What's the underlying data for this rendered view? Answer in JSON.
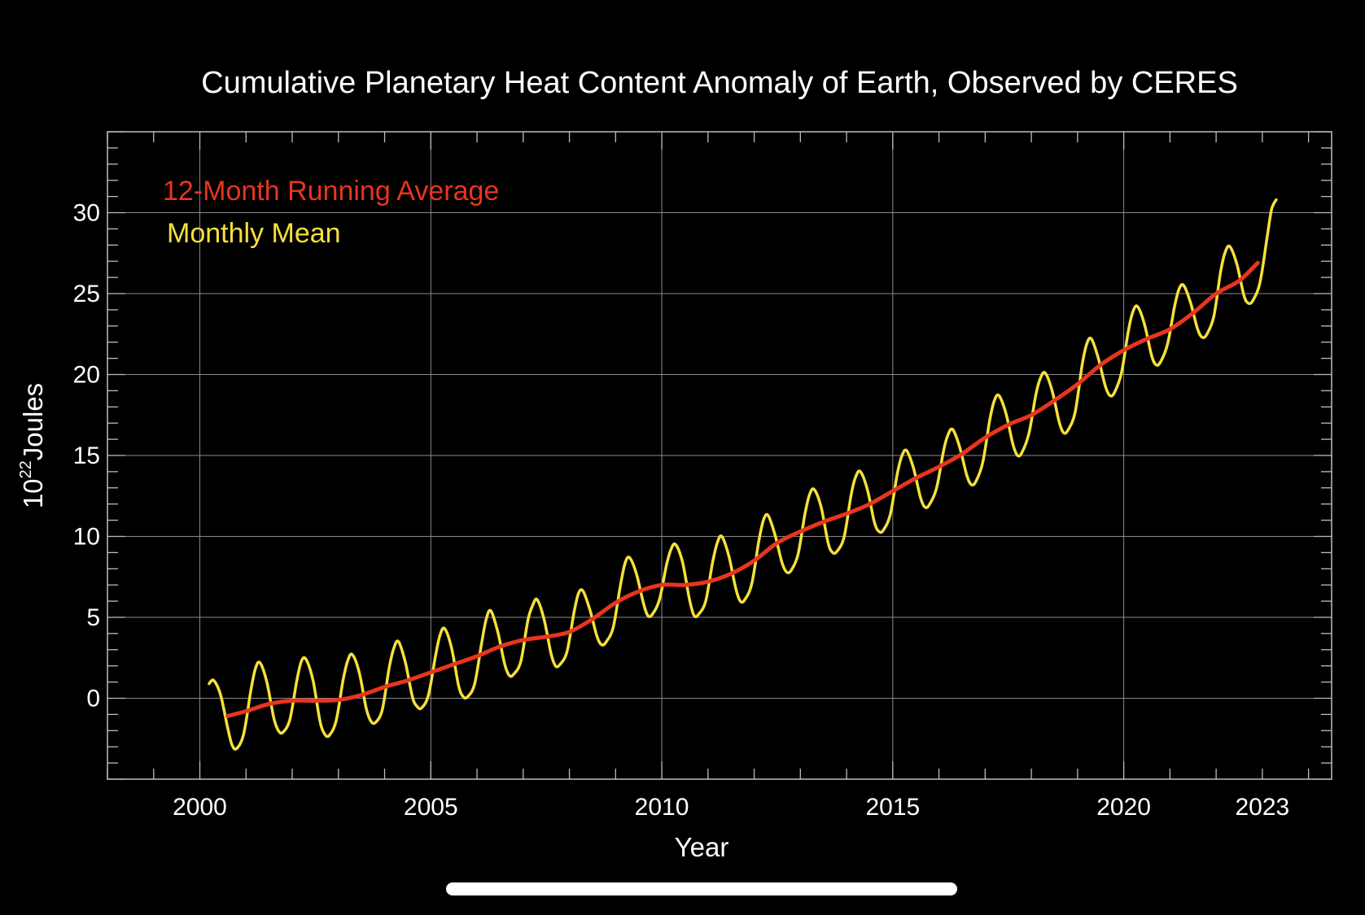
{
  "chart_data": {
    "type": "line",
    "title": "Cumulative Planetary Heat Content Anomaly of Earth, Observed by CERES",
    "xlabel": "Year",
    "ylabel": "Joules",
    "ylabel_prefix": "10",
    "ylabel_exponent": "22",
    "xlim": [
      1998,
      2024.5
    ],
    "ylim": [
      -5,
      35
    ],
    "x_ticks": [
      {
        "value": 2000,
        "label": "2000"
      },
      {
        "value": 2005,
        "label": "2005"
      },
      {
        "value": 2010,
        "label": "2010"
      },
      {
        "value": 2015,
        "label": "2015"
      },
      {
        "value": 2020,
        "label": "2020"
      },
      {
        "value": 2023,
        "label": "2023"
      }
    ],
    "y_ticks": [
      {
        "value": 0,
        "label": "0"
      },
      {
        "value": 5,
        "label": "5"
      },
      {
        "value": 10,
        "label": "10"
      },
      {
        "value": 15,
        "label": "15"
      },
      {
        "value": 20,
        "label": "20"
      },
      {
        "value": 25,
        "label": "25"
      },
      {
        "value": 30,
        "label": "30"
      }
    ],
    "grid": true,
    "legend_position": "top-left",
    "series": [
      {
        "name": "12-Month Running Average",
        "color": "#e8351e",
        "points": [
          [
            2000.6,
            -1.1
          ],
          [
            2001.0,
            -0.8
          ],
          [
            2001.5,
            -0.35
          ],
          [
            2002.0,
            -0.15
          ],
          [
            2002.5,
            -0.15
          ],
          [
            2003.0,
            -0.1
          ],
          [
            2003.5,
            0.2
          ],
          [
            2004.0,
            0.7
          ],
          [
            2004.5,
            1.1
          ],
          [
            2005.0,
            1.6
          ],
          [
            2005.5,
            2.1
          ],
          [
            2006.0,
            2.6
          ],
          [
            2006.5,
            3.2
          ],
          [
            2007.0,
            3.6
          ],
          [
            2007.5,
            3.8
          ],
          [
            2008.0,
            4.1
          ],
          [
            2008.5,
            4.9
          ],
          [
            2009.0,
            5.9
          ],
          [
            2009.5,
            6.6
          ],
          [
            2010.0,
            7.0
          ],
          [
            2010.5,
            7.0
          ],
          [
            2011.0,
            7.2
          ],
          [
            2011.5,
            7.7
          ],
          [
            2012.0,
            8.5
          ],
          [
            2012.5,
            9.6
          ],
          [
            2013.0,
            10.3
          ],
          [
            2013.5,
            10.9
          ],
          [
            2014.0,
            11.4
          ],
          [
            2014.5,
            12.0
          ],
          [
            2015.0,
            12.8
          ],
          [
            2015.5,
            13.6
          ],
          [
            2016.0,
            14.3
          ],
          [
            2016.5,
            15.1
          ],
          [
            2017.0,
            16.1
          ],
          [
            2017.5,
            16.9
          ],
          [
            2018.0,
            17.5
          ],
          [
            2018.5,
            18.4
          ],
          [
            2019.0,
            19.4
          ],
          [
            2019.5,
            20.6
          ],
          [
            2020.0,
            21.5
          ],
          [
            2020.5,
            22.2
          ],
          [
            2021.0,
            22.8
          ],
          [
            2021.5,
            23.8
          ],
          [
            2022.0,
            25.0
          ],
          [
            2022.5,
            25.8
          ],
          [
            2022.9,
            26.9
          ]
        ]
      },
      {
        "name": "Monthly Mean",
        "color": "#f4e13a",
        "points": [
          [
            2000.2,
            0.9
          ],
          [
            2000.3,
            1.1
          ],
          [
            2000.45,
            0.2
          ],
          [
            2000.6,
            -1.8
          ],
          [
            2000.7,
            -2.9
          ],
          [
            2000.8,
            -3.1
          ],
          [
            2000.95,
            -2.2
          ],
          [
            2001.1,
            0.4
          ],
          [
            2001.2,
            1.8
          ],
          [
            2001.3,
            2.2
          ],
          [
            2001.45,
            1.0
          ],
          [
            2001.6,
            -1.2
          ],
          [
            2001.7,
            -2.0
          ],
          [
            2001.8,
            -2.1
          ],
          [
            2001.95,
            -1.3
          ],
          [
            2002.1,
            1.1
          ],
          [
            2002.2,
            2.3
          ],
          [
            2002.3,
            2.4
          ],
          [
            2002.45,
            1.1
          ],
          [
            2002.6,
            -1.4
          ],
          [
            2002.7,
            -2.2
          ],
          [
            2002.8,
            -2.3
          ],
          [
            2002.95,
            -1.4
          ],
          [
            2003.1,
            1.1
          ],
          [
            2003.2,
            2.3
          ],
          [
            2003.3,
            2.7
          ],
          [
            2003.45,
            1.6
          ],
          [
            2003.6,
            -0.6
          ],
          [
            2003.7,
            -1.4
          ],
          [
            2003.8,
            -1.5
          ],
          [
            2003.95,
            -0.7
          ],
          [
            2004.1,
            1.9
          ],
          [
            2004.2,
            3.1
          ],
          [
            2004.3,
            3.5
          ],
          [
            2004.45,
            2.2
          ],
          [
            2004.6,
            0.1
          ],
          [
            2004.7,
            -0.5
          ],
          [
            2004.8,
            -0.6
          ],
          [
            2004.95,
            0.2
          ],
          [
            2005.1,
            2.6
          ],
          [
            2005.2,
            3.9
          ],
          [
            2005.3,
            4.3
          ],
          [
            2005.45,
            3.1
          ],
          [
            2005.6,
            0.8
          ],
          [
            2005.7,
            0.1
          ],
          [
            2005.8,
            0.1
          ],
          [
            2005.95,
            0.9
          ],
          [
            2006.1,
            3.4
          ],
          [
            2006.2,
            4.9
          ],
          [
            2006.3,
            5.4
          ],
          [
            2006.45,
            4.1
          ],
          [
            2006.6,
            2.1
          ],
          [
            2006.7,
            1.4
          ],
          [
            2006.8,
            1.5
          ],
          [
            2006.95,
            2.3
          ],
          [
            2007.1,
            4.8
          ],
          [
            2007.2,
            5.7
          ],
          [
            2007.3,
            6.1
          ],
          [
            2007.45,
            4.9
          ],
          [
            2007.6,
            2.8
          ],
          [
            2007.7,
            2.0
          ],
          [
            2007.8,
            2.1
          ],
          [
            2007.95,
            2.9
          ],
          [
            2008.1,
            5.3
          ],
          [
            2008.2,
            6.5
          ],
          [
            2008.3,
            6.6
          ],
          [
            2008.45,
            5.4
          ],
          [
            2008.6,
            3.8
          ],
          [
            2008.7,
            3.3
          ],
          [
            2008.8,
            3.5
          ],
          [
            2008.95,
            4.4
          ],
          [
            2009.1,
            6.9
          ],
          [
            2009.2,
            8.3
          ],
          [
            2009.3,
            8.7
          ],
          [
            2009.45,
            7.7
          ],
          [
            2009.6,
            5.9
          ],
          [
            2009.7,
            5.1
          ],
          [
            2009.8,
            5.2
          ],
          [
            2009.95,
            6.1
          ],
          [
            2010.1,
            8.2
          ],
          [
            2010.2,
            9.2
          ],
          [
            2010.3,
            9.5
          ],
          [
            2010.45,
            8.4
          ],
          [
            2010.6,
            6.1
          ],
          [
            2010.7,
            5.1
          ],
          [
            2010.8,
            5.2
          ],
          [
            2010.95,
            6.0
          ],
          [
            2011.1,
            8.4
          ],
          [
            2011.2,
            9.6
          ],
          [
            2011.3,
            10.0
          ],
          [
            2011.45,
            8.8
          ],
          [
            2011.6,
            6.8
          ],
          [
            2011.7,
            6.0
          ],
          [
            2011.8,
            6.1
          ],
          [
            2011.95,
            7.1
          ],
          [
            2012.1,
            9.7
          ],
          [
            2012.2,
            11.0
          ],
          [
            2012.3,
            11.3
          ],
          [
            2012.45,
            10.1
          ],
          [
            2012.6,
            8.4
          ],
          [
            2012.7,
            7.8
          ],
          [
            2012.8,
            7.9
          ],
          [
            2012.95,
            8.9
          ],
          [
            2013.1,
            11.4
          ],
          [
            2013.2,
            12.6
          ],
          [
            2013.3,
            12.9
          ],
          [
            2013.45,
            11.8
          ],
          [
            2013.6,
            9.6
          ],
          [
            2013.7,
            9.0
          ],
          [
            2013.8,
            9.1
          ],
          [
            2013.95,
            10.0
          ],
          [
            2014.1,
            12.6
          ],
          [
            2014.2,
            13.7
          ],
          [
            2014.3,
            14.0
          ],
          [
            2014.45,
            12.9
          ],
          [
            2014.6,
            10.9
          ],
          [
            2014.7,
            10.3
          ],
          [
            2014.8,
            10.4
          ],
          [
            2014.95,
            11.4
          ],
          [
            2015.1,
            13.9
          ],
          [
            2015.2,
            15.0
          ],
          [
            2015.3,
            15.3
          ],
          [
            2015.45,
            14.2
          ],
          [
            2015.6,
            12.4
          ],
          [
            2015.7,
            11.8
          ],
          [
            2015.8,
            12.0
          ],
          [
            2015.95,
            13.0
          ],
          [
            2016.1,
            15.3
          ],
          [
            2016.2,
            16.3
          ],
          [
            2016.3,
            16.6
          ],
          [
            2016.45,
            15.5
          ],
          [
            2016.6,
            13.8
          ],
          [
            2016.7,
            13.2
          ],
          [
            2016.8,
            13.4
          ],
          [
            2016.95,
            14.6
          ],
          [
            2017.1,
            17.2
          ],
          [
            2017.2,
            18.4
          ],
          [
            2017.3,
            18.7
          ],
          [
            2017.45,
            17.6
          ],
          [
            2017.6,
            15.7
          ],
          [
            2017.7,
            15.0
          ],
          [
            2017.8,
            15.2
          ],
          [
            2017.95,
            16.4
          ],
          [
            2018.1,
            18.8
          ],
          [
            2018.2,
            19.8
          ],
          [
            2018.3,
            20.1
          ],
          [
            2018.45,
            19.0
          ],
          [
            2018.6,
            17.1
          ],
          [
            2018.7,
            16.4
          ],
          [
            2018.8,
            16.6
          ],
          [
            2018.95,
            17.7
          ],
          [
            2019.1,
            20.6
          ],
          [
            2019.2,
            21.9
          ],
          [
            2019.3,
            22.2
          ],
          [
            2019.45,
            21.0
          ],
          [
            2019.6,
            19.3
          ],
          [
            2019.7,
            18.7
          ],
          [
            2019.8,
            18.9
          ],
          [
            2019.95,
            20.1
          ],
          [
            2020.1,
            22.7
          ],
          [
            2020.2,
            23.9
          ],
          [
            2020.3,
            24.2
          ],
          [
            2020.45,
            23.1
          ],
          [
            2020.6,
            21.2
          ],
          [
            2020.7,
            20.6
          ],
          [
            2020.8,
            20.8
          ],
          [
            2020.95,
            21.9
          ],
          [
            2021.1,
            24.2
          ],
          [
            2021.2,
            25.3
          ],
          [
            2021.3,
            25.5
          ],
          [
            2021.45,
            24.4
          ],
          [
            2021.6,
            22.8
          ],
          [
            2021.7,
            22.3
          ],
          [
            2021.8,
            22.5
          ],
          [
            2021.95,
            23.6
          ],
          [
            2022.1,
            26.4
          ],
          [
            2022.2,
            27.6
          ],
          [
            2022.3,
            27.9
          ],
          [
            2022.45,
            26.8
          ],
          [
            2022.6,
            24.9
          ],
          [
            2022.7,
            24.4
          ],
          [
            2022.8,
            24.6
          ],
          [
            2022.95,
            25.7
          ],
          [
            2023.1,
            28.4
          ],
          [
            2023.2,
            30.2
          ],
          [
            2023.3,
            30.8
          ]
        ]
      }
    ]
  }
}
